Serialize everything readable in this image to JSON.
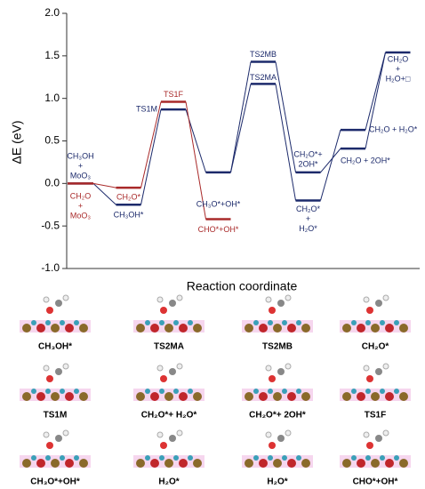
{
  "chart_data": {
    "type": "energy-levels",
    "ylabel": "ΔE (eV)",
    "xlabel": "Reaction coordinate",
    "ylim": [
      -1,
      2
    ],
    "yticks": [
      {
        "value": -1,
        "label": "-1.0"
      },
      {
        "value": -0.5,
        "label": "-0.5"
      },
      {
        "value": 0,
        "label": "0.0"
      },
      {
        "value": 0.5,
        "label": "0.5"
      },
      {
        "value": 1,
        "label": "1.0"
      },
      {
        "value": 1.5,
        "label": "1.5"
      },
      {
        "value": 2,
        "label": "2.0"
      }
    ],
    "levels": [
      {
        "step": 0,
        "value": 0,
        "color": "#1c2a6b",
        "label": [
          "CH₃OH",
          "+",
          "MoO₃"
        ]
      },
      {
        "step": 0,
        "value": 0,
        "color": "#a92a2a",
        "label": [
          "CH₂O",
          "+",
          "MoO₃"
        ]
      },
      {
        "step": 1,
        "value": -0.25,
        "color": "#1c2a6b",
        "label": [
          "CH₃OH*"
        ]
      },
      {
        "step": 1,
        "value": -0.05,
        "color": "#a92a2a",
        "label": [
          "CH₂O*"
        ]
      },
      {
        "step": 2,
        "value": 0.87,
        "color": "#1c2a6b",
        "label": [
          "TS1M"
        ]
      },
      {
        "step": 2,
        "value": 0.96,
        "color": "#a92a2a",
        "label": [
          "TS1F"
        ]
      },
      {
        "step": 3,
        "value": 0.13,
        "color": "#1c2a6b",
        "label": [
          "CH₃O*+OH*"
        ]
      },
      {
        "step": 3,
        "value": -0.42,
        "color": "#a92a2a",
        "label": [
          "CHO*+OH*"
        ]
      },
      {
        "step": 4,
        "value": 1.43,
        "color": "#1c2a6b",
        "label": [
          "TS2MB"
        ]
      },
      {
        "step": 4,
        "value": 1.17,
        "color": "#1c2a6b",
        "label": [
          "TS2MA"
        ]
      },
      {
        "step": 5,
        "value": 0.13,
        "color": "#1c2a6b",
        "label": [
          "CH₂O*+",
          "2OH*"
        ]
      },
      {
        "step": 5,
        "value": -0.2,
        "color": "#1c2a6b",
        "label": [
          "CH₂O*",
          "+",
          "H₂O*"
        ]
      },
      {
        "step": 6,
        "value": 0.41,
        "color": "#1c2a6b",
        "label": [
          "CH₂O + 2OH*"
        ]
      },
      {
        "step": 6,
        "value": 0.63,
        "color": "#1c2a6b",
        "label": [
          "CH₂O + H₂O*"
        ]
      },
      {
        "step": 7,
        "value": 1.54,
        "color": "#1c2a6b",
        "label": [
          "CH₂O",
          "+",
          "H₂O+□"
        ]
      }
    ],
    "connections": [
      [
        0,
        2
      ],
      [
        2,
        4
      ],
      [
        4,
        6
      ],
      [
        6,
        8
      ],
      [
        6,
        9
      ],
      [
        8,
        10
      ],
      [
        9,
        11
      ],
      [
        10,
        12
      ],
      [
        11,
        13
      ],
      [
        12,
        14
      ],
      [
        13,
        14
      ],
      [
        1,
        3
      ],
      [
        3,
        5
      ],
      [
        5,
        7
      ]
    ]
  },
  "structures": [
    "CH₃OH*",
    "TS2MA",
    "TS2MB",
    "CH₂O*",
    "TS1M",
    "CH₂O*+ H₂O*",
    "CH₂O*+ 2OH*",
    "TS1F",
    "CH₃O*+OH*",
    "H₂O*",
    "H₂O*",
    "CHO*+OH*"
  ]
}
